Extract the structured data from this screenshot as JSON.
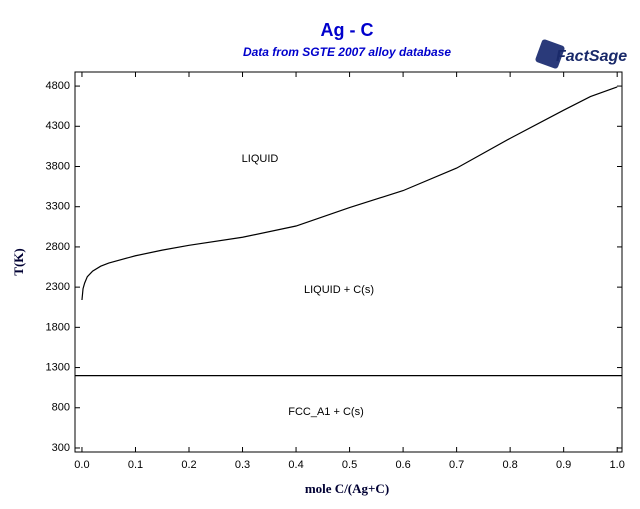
{
  "chart_data": {
    "type": "line",
    "title": "Ag - C",
    "subtitle": "Data from SGTE 2007 alloy database",
    "logo": "FactSage",
    "x_label": "mole C/(Ag+C)",
    "y_label": "T(K)",
    "xlim": [
      -0.013,
      1.009
    ],
    "ylim": [
      250,
      4975
    ],
    "xticks": [
      {
        "value": 0,
        "label": "0.0"
      },
      0.1,
      0.2,
      0.3,
      0.4,
      0.5,
      0.6,
      0.7,
      0.8,
      0.9,
      {
        "value": 1,
        "label": "1.0"
      }
    ],
    "yticks": [
      300,
      800,
      1300,
      1800,
      2300,
      2800,
      3300,
      3800,
      4300,
      4800
    ],
    "series": [
      {
        "color": "#000000",
        "x": [
          0,
          0.002,
          0.005,
          0.01,
          0.02,
          0.035,
          0.05,
          0.1,
          0.15,
          0.2,
          0.3,
          0.4,
          0.5,
          0.6,
          0.7,
          0.8,
          0.9,
          0.95,
          1.0
        ],
        "values": [
          2140,
          2280,
          2350,
          2430,
          2500,
          2560,
          2600,
          2690,
          2760,
          2820,
          2920,
          3060,
          3290,
          3500,
          3780,
          4150,
          4500,
          4670,
          4790
        ]
      },
      {
        "color": "#000000",
        "x": [
          -0.013,
          1.009
        ],
        "values": [
          1200,
          1200
        ]
      }
    ],
    "region_labels": [
      "LIQUID",
      "LIQUID + C(s)",
      "FCC_A1 + C(s)"
    ]
  }
}
